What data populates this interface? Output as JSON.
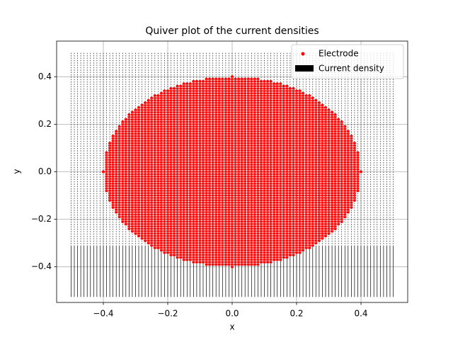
{
  "chart_data": {
    "type": "quiver",
    "title": "Quiver plot of the current densities",
    "xlabel": "x",
    "ylabel": "y",
    "xlim": [
      -0.545,
      0.545
    ],
    "ylim": [
      -0.55,
      0.55
    ],
    "xticks": [
      {
        "value": -0.4,
        "label": "−0.4"
      },
      {
        "value": -0.2,
        "label": "−0.2"
      },
      {
        "value": 0,
        "label": "0.0"
      },
      0.2,
      0.4
    ],
    "yticks": [
      {
        "value": -0.4,
        "label": "−0.4"
      },
      {
        "value": -0.2,
        "label": "−0.2"
      },
      {
        "value": 0,
        "label": "0.0"
      },
      0.2,
      0.4
    ],
    "grid": true,
    "legend": "upper right",
    "series": [
      {
        "name": "Electrode",
        "color": "#ff0000",
        "center": [
          0,
          0
        ],
        "radius": 0.4,
        "step": 0.01
      },
      {
        "name": "Current density",
        "color": "#000000",
        "xrange": [
          -0.5,
          0.5
        ],
        "yrange": [
          -0.5,
          0.5
        ],
        "step": 0.01
      }
    ]
  }
}
